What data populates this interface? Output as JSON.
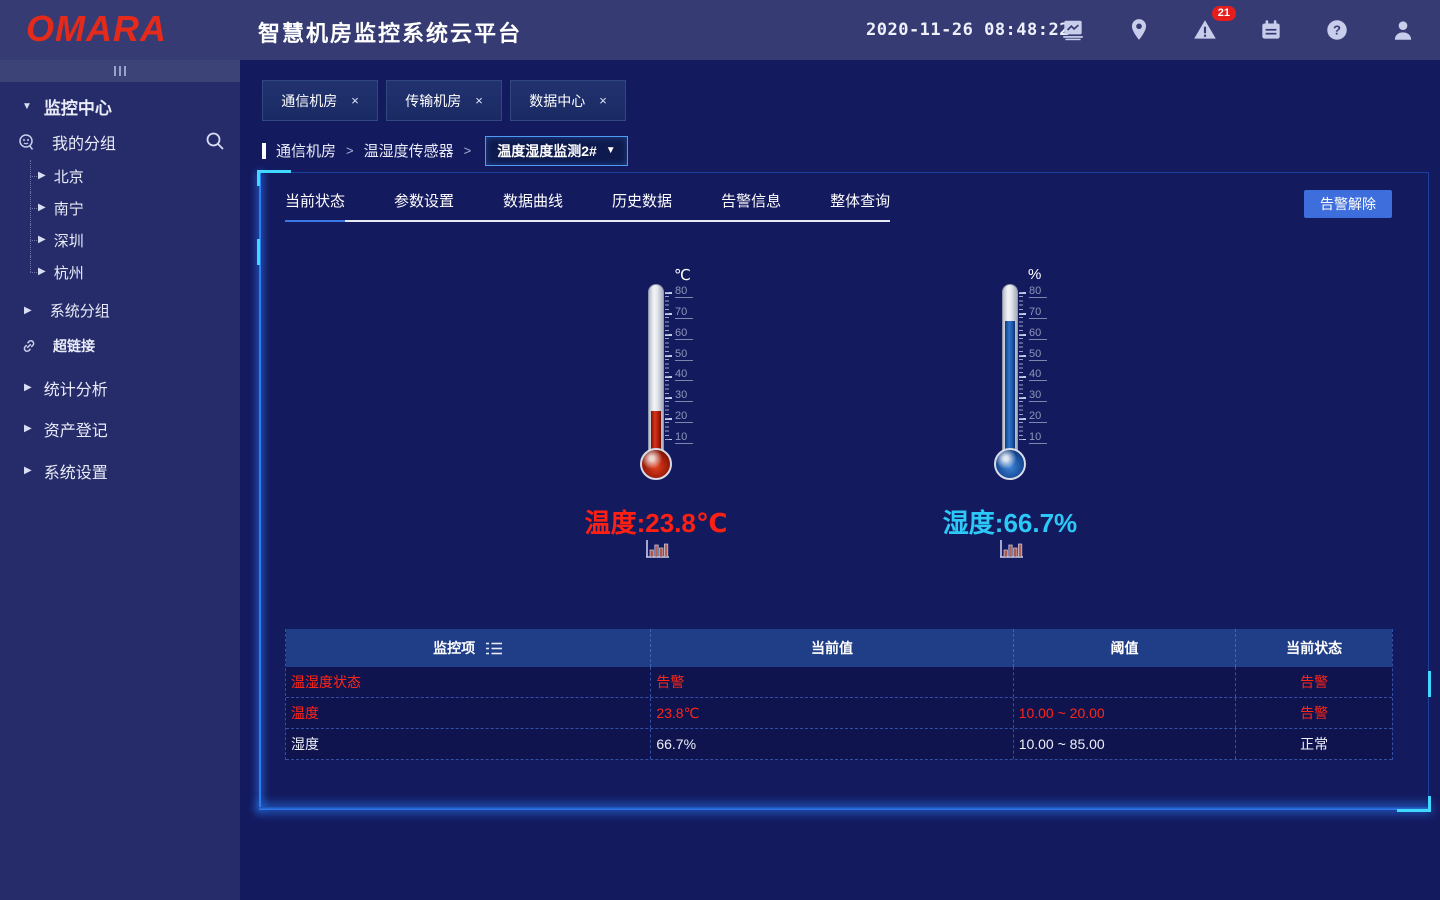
{
  "header": {
    "logo": "OMARA",
    "title": "智慧机房监控系统云平台",
    "datetime": "2020-11-26 08:48:22",
    "alert_count": "21"
  },
  "icons": {
    "caret_down": "▼",
    "caret_right": "▶",
    "close": "×",
    "dropdown_arrow": "▼"
  },
  "sidebar": {
    "root": "监控中心",
    "group": "我的分组",
    "cities": [
      "北京",
      "南宁",
      "深圳",
      "杭州"
    ],
    "system_group": "系统分组",
    "hyperlink": "超链接",
    "stats": "统计分析",
    "assets": "资产登记",
    "settings": "系统设置"
  },
  "tabs": {
    "items": [
      {
        "label": "通信机房"
      },
      {
        "label": "传输机房"
      },
      {
        "label": "数据中心"
      }
    ]
  },
  "breadcrumb": {
    "crumbs": [
      "通信机房",
      "温湿度传感器"
    ],
    "separator": ">",
    "dropdown": "温度湿度监测2#"
  },
  "panel": {
    "tabs": [
      {
        "label": "当前状态",
        "cls": "active"
      },
      {
        "label": "参数设置",
        "cls": ""
      },
      {
        "label": "数据曲线",
        "cls": ""
      },
      {
        "label": "历史数据",
        "cls": ""
      },
      {
        "label": "告警信息",
        "cls": ""
      },
      {
        "label": "整体查询",
        "cls": ""
      }
    ],
    "alarm_clear": "告警解除",
    "thermometers": [
      {
        "unit": "℃",
        "value": 23.8,
        "reading": "温度:23.8℃",
        "color": "#ff2014",
        "theme": "red",
        "scale": [
          80,
          70,
          60,
          50,
          40,
          30,
          20,
          10
        ]
      },
      {
        "unit": "%",
        "value": 66.7,
        "reading": "湿度:66.7%",
        "color": "#2cc8f7",
        "theme": "blue",
        "scale": [
          80,
          70,
          60,
          50,
          40,
          30,
          20,
          10
        ]
      }
    ],
    "table": {
      "columns": [
        "监控项",
        "当前值",
        "阈值",
        "当前状态"
      ],
      "rows": [
        {
          "item": "温湿度状态",
          "value": "告警",
          "threshold": "",
          "status": "告警",
          "state": "alarm"
        },
        {
          "item": "温度",
          "value": "23.8℃",
          "threshold": "10.00 ~ 20.00",
          "status": "告警",
          "state": "alarm"
        },
        {
          "item": "湿度",
          "value": "66.7%",
          "threshold": "10.00 ~ 85.00",
          "status": "正常",
          "state": "normal"
        }
      ]
    }
  },
  "colors": {
    "alarm_red": "#ff2014",
    "humidity_cyan": "#2cc8f7",
    "accent_blue": "#3e6edb",
    "badge_red": "#e61d1d",
    "corner_cyan": "#3fd9ff"
  }
}
